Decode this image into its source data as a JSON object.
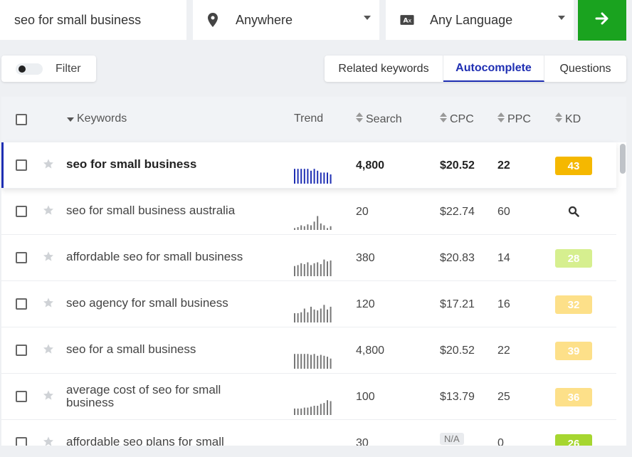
{
  "search": {
    "keyword_value": "seo for small business",
    "location_value": "Anywhere",
    "language_value": "Any Language",
    "icons": {
      "location": "map-pin-icon",
      "language": "translate-icon",
      "submit": "arrow-right-icon"
    }
  },
  "filter": {
    "label": "Filter",
    "toggle_on": false
  },
  "tabs": [
    {
      "label": "Related keywords",
      "active": false
    },
    {
      "label": "Autocomplete",
      "active": true
    },
    {
      "label": "Questions",
      "active": false
    }
  ],
  "table": {
    "headers": {
      "keywords": "Keywords",
      "trend": "Trend",
      "search": "Search",
      "cpc": "CPC",
      "ppc": "PPC",
      "kd": "KD"
    },
    "rows": [
      {
        "keyword": "seo for small business",
        "search": "4,800",
        "cpc": "$20.52",
        "ppc": "22",
        "kd": "43",
        "kd_color": "#f5b800",
        "selected": true,
        "trend": [
          0.8,
          0.8,
          0.8,
          0.8,
          0.8,
          0.7,
          0.8,
          0.7,
          0.6,
          0.6,
          0.6,
          0.5
        ]
      },
      {
        "keyword": "seo for small business australia",
        "search": "20",
        "cpc": "$22.74",
        "ppc": "60",
        "kd": "",
        "kd_color": "",
        "selected": false,
        "trend": [
          0.1,
          0.15,
          0.25,
          0.2,
          0.3,
          0.25,
          0.45,
          0.75,
          0.35,
          0.25,
          0.1,
          0.2
        ]
      },
      {
        "keyword": "affordable seo for small business",
        "search": "380",
        "cpc": "$20.83",
        "ppc": "14",
        "kd": "28",
        "kd_color": "#d6ef8f",
        "selected": false,
        "trend": [
          0.55,
          0.6,
          0.7,
          0.65,
          0.75,
          0.6,
          0.7,
          0.75,
          0.65,
          0.9,
          0.8,
          0.85
        ]
      },
      {
        "keyword": "seo agency for small business",
        "search": "120",
        "cpc": "$17.21",
        "ppc": "16",
        "kd": "32",
        "kd_color": "#fde089",
        "selected": false,
        "trend": [
          0.5,
          0.5,
          0.55,
          0.75,
          0.55,
          0.85,
          0.7,
          0.65,
          0.75,
          0.95,
          0.7,
          0.85
        ]
      },
      {
        "keyword": "seo for a small business",
        "search": "4,800",
        "cpc": "$20.52",
        "ppc": "22",
        "kd": "39",
        "kd_color": "#fde089",
        "selected": false,
        "trend": [
          0.8,
          0.8,
          0.8,
          0.8,
          0.8,
          0.75,
          0.8,
          0.7,
          0.75,
          0.7,
          0.65,
          0.55
        ]
      },
      {
        "keyword": "average cost of seo for small business",
        "search": "100",
        "cpc": "$13.79",
        "ppc": "25",
        "kd": "36",
        "kd_color": "#fde089",
        "selected": false,
        "trend": [
          0.35,
          0.35,
          0.35,
          0.4,
          0.4,
          0.45,
          0.5,
          0.5,
          0.6,
          0.65,
          0.8,
          0.75
        ]
      },
      {
        "keyword": "affordable seo plans for small",
        "search": "30",
        "cpc": "N/A",
        "ppc": "0",
        "kd": "26",
        "kd_color": "#a6d630",
        "selected": false,
        "trend": []
      }
    ]
  }
}
